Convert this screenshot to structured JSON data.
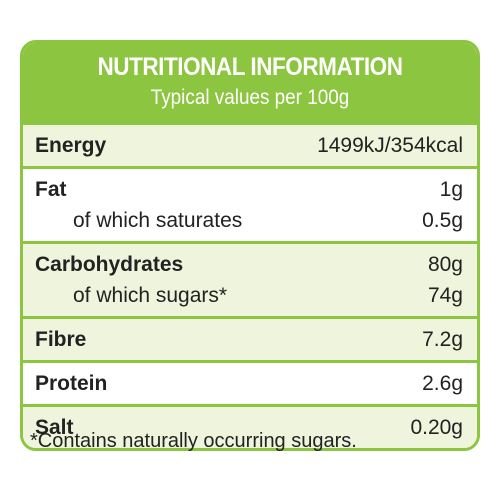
{
  "header": {
    "title": "NUTRITIONAL INFORMATION",
    "subtitle": "Typical values per 100g"
  },
  "table": {
    "groups": [
      [
        [
          "Energy",
          "1499kJ/354kcal"
        ]
      ],
      [
        [
          "Fat",
          "1g"
        ],
        [
          "of which saturates",
          "0.5g"
        ]
      ],
      [
        [
          "Carbohydrates",
          "80g"
        ],
        [
          "of which sugars*",
          "74g"
        ]
      ],
      [
        [
          "Fibre",
          "7.2g"
        ]
      ],
      [
        [
          "Protein",
          "2.6g"
        ]
      ],
      [
        [
          "Salt",
          "0.20g"
        ]
      ]
    ]
  },
  "footnote": "*Contains naturally occurring sugars."
}
